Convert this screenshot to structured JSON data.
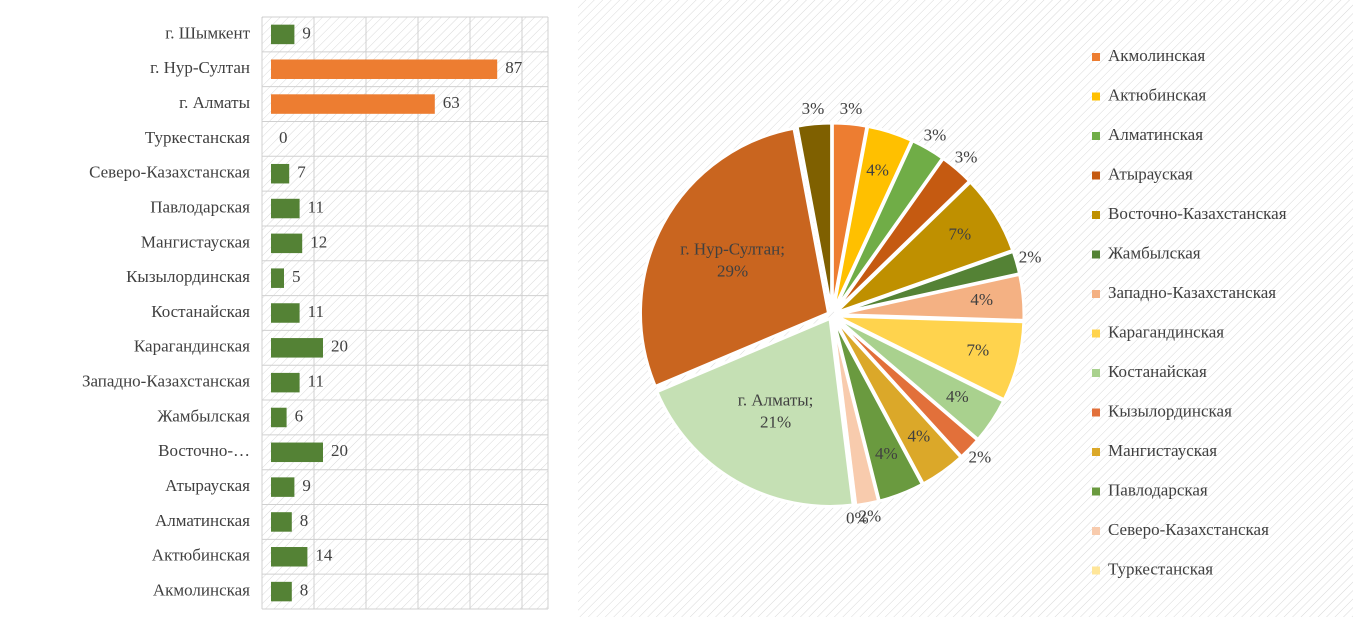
{
  "chart_data": [
    {
      "type": "bar",
      "orientation": "horizontal",
      "categories": [
        "Акмолинская",
        "Актюбинская",
        "Алматинская",
        "Атырауская",
        "Восточно-…",
        "Жамбылская",
        "Западно-Казахстанская",
        "Карагандинская",
        "Костанайская",
        "Кызылординская",
        "Мангистауская",
        "Павлодарская",
        "Северо-Казахстанская",
        "Туркестанская",
        "г. Алматы",
        "г. Нур-Султан",
        "г. Шымкент"
      ],
      "values": [
        8,
        14,
        8,
        9,
        20,
        6,
        11,
        20,
        11,
        5,
        12,
        11,
        7,
        0,
        63,
        87,
        9
      ],
      "colors": [
        "#548235",
        "#548235",
        "#548235",
        "#548235",
        "#548235",
        "#548235",
        "#548235",
        "#548235",
        "#548235",
        "#548235",
        "#548235",
        "#548235",
        "#548235",
        "#548235",
        "#ed7d31",
        "#ed7d31",
        "#548235"
      ],
      "xlim": [
        0,
        110
      ],
      "xticks": [
        0,
        20,
        40,
        60,
        80,
        100
      ],
      "grid": true
    },
    {
      "type": "pie",
      "categories": [
        "Акмолинская",
        "Актюбинская",
        "Алматинская",
        "Атырауская",
        "Восточно-Казахстанская",
        "Жамбылская",
        "Западно-Казахстанская",
        "Карагандинская",
        "Костанайская",
        "Кызылординская",
        "Мангистауская",
        "Павлодарская",
        "Северо-Казахстанская",
        "Туркестанская",
        "г. Алматы",
        "г. Нур-Султан",
        "г. Шымкент"
      ],
      "values": [
        3,
        4,
        3,
        3,
        7,
        2,
        4,
        7,
        4,
        2,
        4,
        4,
        2,
        0,
        21,
        29,
        3
      ],
      "value_labels": [
        "3%",
        "4%",
        "3%",
        "3%",
        "7%",
        "2%",
        "4%",
        "7%",
        "4%",
        "2%",
        "4%",
        "4%",
        "2%",
        "0%",
        "г. Алматы; 21%",
        "г. Нур-Султан; 29%",
        "3%"
      ],
      "colors": [
        "#ed7d31",
        "#ffc000",
        "#70ad47",
        "#c55a11",
        "#bf9000",
        "#548235",
        "#f4b183",
        "#ffd34d",
        "#a9d18e",
        "#e2703a",
        "#dba829",
        "#6a9a3f",
        "#f8cbad",
        "#ffe699",
        "#c5e0b4",
        "#c9651f",
        "#7f6000"
      ],
      "legend": "right"
    }
  ]
}
